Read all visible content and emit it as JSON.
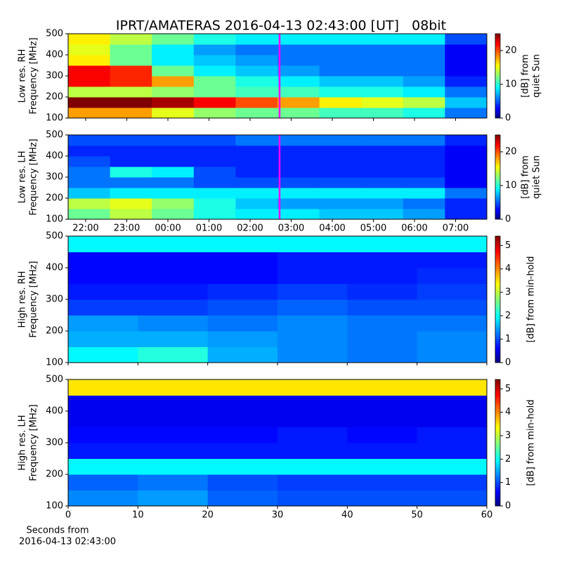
{
  "chart_data": [
    {
      "type": "heatmap",
      "title": "IPRT/AMATERAS 2016-04-13 02:43:00 [UT]   08bit",
      "ylabel": [
        "Low res. RH",
        "Frequency [MHz]"
      ],
      "clabel": [
        "[dB] from",
        "quiet Sun"
      ],
      "xlim": [
        21.573,
        31.76
      ],
      "ylim": [
        100,
        500
      ],
      "clim": [
        0,
        25
      ],
      "xticks": [
        {
          "value": 22,
          "label": "22:00"
        },
        {
          "value": 23,
          "label": "23:00"
        },
        {
          "value": 24,
          "label": "00:00"
        },
        {
          "value": 25,
          "label": "01:00"
        },
        {
          "value": 26,
          "label": "02:00"
        },
        {
          "value": 27,
          "label": "03:00"
        },
        {
          "value": 28,
          "label": "04:00"
        },
        {
          "value": 29,
          "label": "05:00"
        },
        {
          "value": 30,
          "label": "06:00"
        },
        {
          "value": 31,
          "label": "07:00"
        }
      ],
      "show_xticklabels": false,
      "yticks": [
        100,
        200,
        300,
        400,
        500
      ],
      "cticks": [
        0,
        10,
        20
      ],
      "marker_x": 26.717,
      "marker_color": "#ff00ff",
      "z": [
        [
          18,
          18,
          15,
          13,
          12,
          12,
          11,
          11,
          10,
          6
        ],
        [
          25,
          25,
          24,
          22,
          20,
          18,
          16,
          15,
          14,
          8
        ],
        [
          14,
          14,
          13,
          12,
          11,
          11,
          10,
          10,
          9,
          6
        ],
        [
          22,
          21,
          18,
          12,
          10,
          9,
          8,
          8,
          7,
          4
        ],
        [
          22,
          21,
          12,
          9,
          8,
          7,
          6,
          6,
          6,
          3
        ],
        [
          16,
          12,
          9,
          8,
          7,
          6,
          6,
          6,
          6,
          3
        ],
        [
          15,
          12,
          9,
          7,
          6,
          6,
          6,
          6,
          6,
          3
        ],
        [
          16,
          14,
          12,
          10,
          9,
          9,
          9,
          9,
          9,
          5
        ]
      ]
    },
    {
      "type": "heatmap",
      "ylabel": [
        "Low res. LH",
        "Frequency [MHz]"
      ],
      "clabel": [
        "[dB] from",
        "quiet Sun"
      ],
      "xlim": [
        21.573,
        31.76
      ],
      "ylim": [
        100,
        500
      ],
      "clim": [
        0,
        25
      ],
      "xticks": [
        {
          "value": 22,
          "label": "22:00"
        },
        {
          "value": 23,
          "label": "23:00"
        },
        {
          "value": 24,
          "label": "00:00"
        },
        {
          "value": 25,
          "label": "01:00"
        },
        {
          "value": 26,
          "label": "02:00"
        },
        {
          "value": 27,
          "label": "03:00"
        },
        {
          "value": 28,
          "label": "04:00"
        },
        {
          "value": 29,
          "label": "05:00"
        },
        {
          "value": 30,
          "label": "06:00"
        },
        {
          "value": 31,
          "label": "07:00"
        }
      ],
      "show_xticklabels": true,
      "yticks": [
        100,
        200,
        300,
        400,
        500
      ],
      "cticks": [
        0,
        10,
        20
      ],
      "marker_x": 26.717,
      "marker_color": "#ff00ff",
      "z": [
        [
          12,
          14,
          12,
          10,
          9,
          9,
          8,
          8,
          7,
          4
        ],
        [
          14,
          15,
          13,
          10,
          8,
          7,
          7,
          7,
          6,
          4
        ],
        [
          8,
          9,
          9,
          9,
          9,
          9,
          9,
          9,
          9,
          6
        ],
        [
          6,
          6,
          6,
          5,
          5,
          5,
          5,
          5,
          5,
          3
        ],
        [
          6,
          10,
          9,
          5,
          4,
          4,
          4,
          4,
          4,
          3
        ],
        [
          5,
          4,
          4,
          4,
          4,
          4,
          4,
          4,
          4,
          3
        ],
        [
          4,
          4,
          4,
          4,
          4,
          4,
          4,
          4,
          4,
          3
        ],
        [
          5,
          5,
          5,
          5,
          6,
          6,
          6,
          6,
          6,
          4
        ]
      ]
    },
    {
      "type": "heatmap",
      "ylabel": [
        "High res. RH",
        "Frequency [MHz]"
      ],
      "clabel": [
        "[dB] from min-hold"
      ],
      "xlim": [
        0,
        60
      ],
      "ylim": [
        100,
        500
      ],
      "clim": [
        0,
        5.4
      ],
      "xticks": [
        0,
        10,
        20,
        30,
        40,
        50,
        60
      ],
      "show_xticklabels": false,
      "yticks": [
        100,
        200,
        300,
        400,
        500
      ],
      "cticks": [
        0,
        1,
        2,
        3,
        4,
        5
      ],
      "z": [
        [
          2.0,
          2.2,
          1.6,
          1.4,
          1.3,
          1.4
        ],
        [
          1.6,
          1.6,
          1.5,
          1.4,
          1.3,
          1.4
        ],
        [
          1.5,
          1.4,
          1.3,
          1.4,
          1.3,
          1.3
        ],
        [
          1.0,
          1.0,
          1.1,
          1.2,
          1.1,
          1.1
        ],
        [
          0.8,
          0.8,
          0.9,
          1.0,
          0.9,
          1.0
        ],
        [
          0.7,
          0.7,
          0.7,
          0.8,
          0.8,
          0.9
        ],
        [
          0.7,
          0.7,
          0.7,
          0.8,
          0.8,
          0.8
        ],
        [
          2.0,
          2.0,
          2.0,
          2.0,
          2.0,
          2.0
        ]
      ]
    },
    {
      "type": "heatmap",
      "ylabel": [
        "High res. LH",
        "Frequency [MHz]"
      ],
      "clabel": [
        "[dB] from min-hold"
      ],
      "xlabel": [
        "Seconds from",
        "2016-04-13 02:43:00"
      ],
      "xlim": [
        0,
        60
      ],
      "ylim": [
        100,
        500
      ],
      "clim": [
        0,
        5.4
      ],
      "xticks": [
        0,
        10,
        20,
        30,
        40,
        50,
        60
      ],
      "show_xticklabels": true,
      "yticks": [
        100,
        200,
        300,
        400,
        500
      ],
      "cticks": [
        0,
        1,
        2,
        3,
        4,
        5
      ],
      "z": [
        [
          1.4,
          1.5,
          1.2,
          1.1,
          1.1,
          1.1
        ],
        [
          1.2,
          1.3,
          1.1,
          1.0,
          1.0,
          1.0
        ],
        [
          2.0,
          2.0,
          2.0,
          2.0,
          2.0,
          2.0
        ],
        [
          0.8,
          0.8,
          0.8,
          0.8,
          0.8,
          0.8
        ],
        [
          0.7,
          0.7,
          0.7,
          0.8,
          0.7,
          0.8
        ],
        [
          0.6,
          0.6,
          0.6,
          0.6,
          0.6,
          0.6
        ],
        [
          0.6,
          0.6,
          0.6,
          0.6,
          0.6,
          0.6
        ],
        [
          3.5,
          3.5,
          3.5,
          3.5,
          3.5,
          3.5
        ]
      ]
    }
  ]
}
